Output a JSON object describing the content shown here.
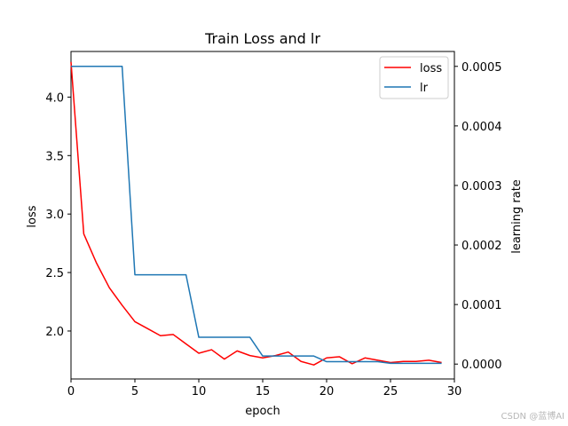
{
  "chart_data": {
    "type": "line",
    "title": "Train Loss and lr",
    "xlabel": "epoch",
    "ylabel": "loss",
    "y2label": "learning rate",
    "xlim": [
      0,
      30
    ],
    "ylim": [
      1.59,
      4.39
    ],
    "y2lim": [
      -2.5e-05,
      0.000525
    ],
    "xticks": [
      "0",
      "5",
      "10",
      "15",
      "20",
      "25",
      "30"
    ],
    "yticks": [
      "2.0",
      "2.5",
      "3.0",
      "3.5",
      "4.0"
    ],
    "y2ticks": [
      "0.0000",
      "0.0001",
      "0.0002",
      "0.0003",
      "0.0004",
      "0.0005"
    ],
    "legend_location": "upper-right",
    "series": [
      {
        "name": "loss",
        "axis": "left",
        "color": "#ff0000",
        "x": [
          0,
          1,
          2,
          3,
          4,
          5,
          6,
          7,
          8,
          9,
          10,
          11,
          12,
          13,
          14,
          15,
          16,
          17,
          18,
          19,
          20,
          21,
          22,
          23,
          24,
          25,
          26,
          27,
          28,
          29
        ],
        "values": [
          4.3,
          2.83,
          2.58,
          2.37,
          2.22,
          2.08,
          2.02,
          1.96,
          1.97,
          1.89,
          1.81,
          1.84,
          1.76,
          1.83,
          1.79,
          1.77,
          1.79,
          1.82,
          1.74,
          1.71,
          1.77,
          1.78,
          1.72,
          1.77,
          1.75,
          1.73,
          1.74,
          1.74,
          1.75,
          1.73
        ]
      },
      {
        "name": "lr",
        "axis": "right",
        "color": "#1f77b4",
        "x": [
          0,
          1,
          2,
          3,
          4,
          5,
          6,
          7,
          8,
          9,
          10,
          11,
          12,
          13,
          14,
          15,
          16,
          17,
          18,
          19,
          20,
          21,
          22,
          23,
          24,
          25,
          26,
          27,
          28,
          29
        ],
        "values": [
          0.0005,
          0.0005,
          0.0005,
          0.0005,
          0.0005,
          0.00015,
          0.00015,
          0.00015,
          0.00015,
          0.00015,
          4.5e-05,
          4.5e-05,
          4.5e-05,
          4.5e-05,
          4.5e-05,
          1.35e-05,
          1.35e-05,
          1.35e-05,
          1.35e-05,
          1.35e-05,
          4e-06,
          4e-06,
          4e-06,
          4e-06,
          4e-06,
          1.2e-06,
          1.2e-06,
          1.2e-06,
          1.2e-06,
          1.2e-06
        ]
      }
    ]
  },
  "watermark": "CSDN @蓝博AI"
}
